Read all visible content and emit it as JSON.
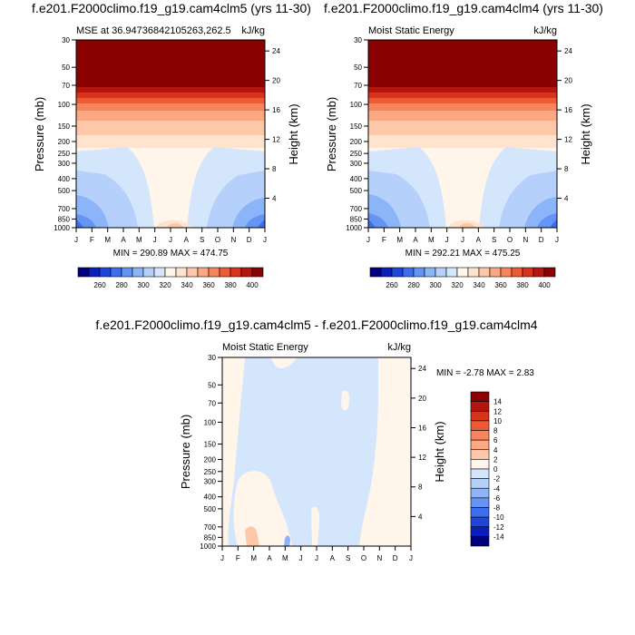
{
  "chart_data": [
    {
      "type": "heatmap",
      "title": "f.e201.F2000climo.f19_g19.cam4clm5 (yrs 11-30)",
      "left_label": "MSE at 36.94736842105263,262.5",
      "right_label": "kJ/kg",
      "ylabel": "Pressure (mb)",
      "ylabel_right": "Height (km)",
      "x_ticks": [
        "J",
        "F",
        "M",
        "A",
        "M",
        "J",
        "J",
        "A",
        "S",
        "O",
        "N",
        "D",
        "J"
      ],
      "y_ticks": [
        "30",
        "50",
        "70",
        "100",
        "150",
        "200",
        "250",
        "300",
        "400",
        "500",
        "700",
        "850",
        "1000"
      ],
      "y_ticks_right": [
        "24",
        "20",
        "16",
        "12",
        "8",
        "4"
      ],
      "summary": "MIN = 290.89 MAX = 474.75",
      "colorbar": {
        "labels": [
          "260",
          "280",
          "300",
          "320",
          "340",
          "360",
          "380",
          "400"
        ],
        "colors": [
          "#000080",
          "#0a1ebe",
          "#1e46dc",
          "#3c6eef",
          "#6495f5",
          "#8cb4f8",
          "#b4d0fb",
          "#d4e6fc",
          "#fff5ea",
          "#fee4cf",
          "#fdc8aa",
          "#fca883",
          "#f8845c",
          "#ee5a36",
          "#d7341b",
          "#b4160d",
          "#8b0000"
        ]
      }
    },
    {
      "type": "heatmap",
      "title": "f.e201.F2000climo.f19_g19.cam4clm4 (yrs 11-30)",
      "left_label": "Moist Static Energy",
      "right_label": "kJ/kg",
      "ylabel": "Pressure (mb)",
      "ylabel_right": "Height (km)",
      "x_ticks": [
        "J",
        "F",
        "M",
        "A",
        "M",
        "J",
        "J",
        "A",
        "S",
        "O",
        "N",
        "D",
        "J"
      ],
      "y_ticks": [
        "30",
        "50",
        "70",
        "100",
        "150",
        "200",
        "250",
        "300",
        "400",
        "500",
        "700",
        "850",
        "1000"
      ],
      "y_ticks_right": [
        "24",
        "20",
        "16",
        "12",
        "8",
        "4"
      ],
      "summary": "MIN = 292.21 MAX = 475.25",
      "colorbar": {
        "labels": [
          "260",
          "280",
          "300",
          "320",
          "340",
          "360",
          "380",
          "400"
        ]
      }
    },
    {
      "type": "heatmap",
      "title": "f.e201.F2000climo.f19_g19.cam4clm5 - f.e201.F2000climo.f19_g19.cam4clm4",
      "left_label": "Moist Static Energy",
      "right_label": "kJ/kg",
      "ylabel": "Pressure (mb)",
      "ylabel_right": "Height (km)",
      "x_ticks": [
        "J",
        "F",
        "M",
        "A",
        "M",
        "J",
        "J",
        "A",
        "S",
        "O",
        "N",
        "D",
        "J"
      ],
      "y_ticks": [
        "30",
        "50",
        "70",
        "100",
        "150",
        "200",
        "250",
        "300",
        "400",
        "500",
        "700",
        "850",
        "1000"
      ],
      "y_ticks_right": [
        "24",
        "20",
        "16",
        "12",
        "8",
        "4"
      ],
      "summary": "MIN =  -2.78 MAX =   2.83",
      "colorbar": {
        "labels": [
          "14",
          "12",
          "10",
          "8",
          "6",
          "4",
          "2",
          "0",
          "-2",
          "-4",
          "-6",
          "-8",
          "-10",
          "-12",
          "-14"
        ],
        "colors": [
          "#8b0000",
          "#b4160d",
          "#d7341b",
          "#ee5a36",
          "#f8845c",
          "#fca883",
          "#fdc8aa",
          "#fff5ea",
          "#d4e6fc",
          "#b4d0fb",
          "#8cb4f8",
          "#6495f5",
          "#3c6eef",
          "#1e46dc",
          "#0a1ebe",
          "#000080"
        ]
      }
    }
  ]
}
